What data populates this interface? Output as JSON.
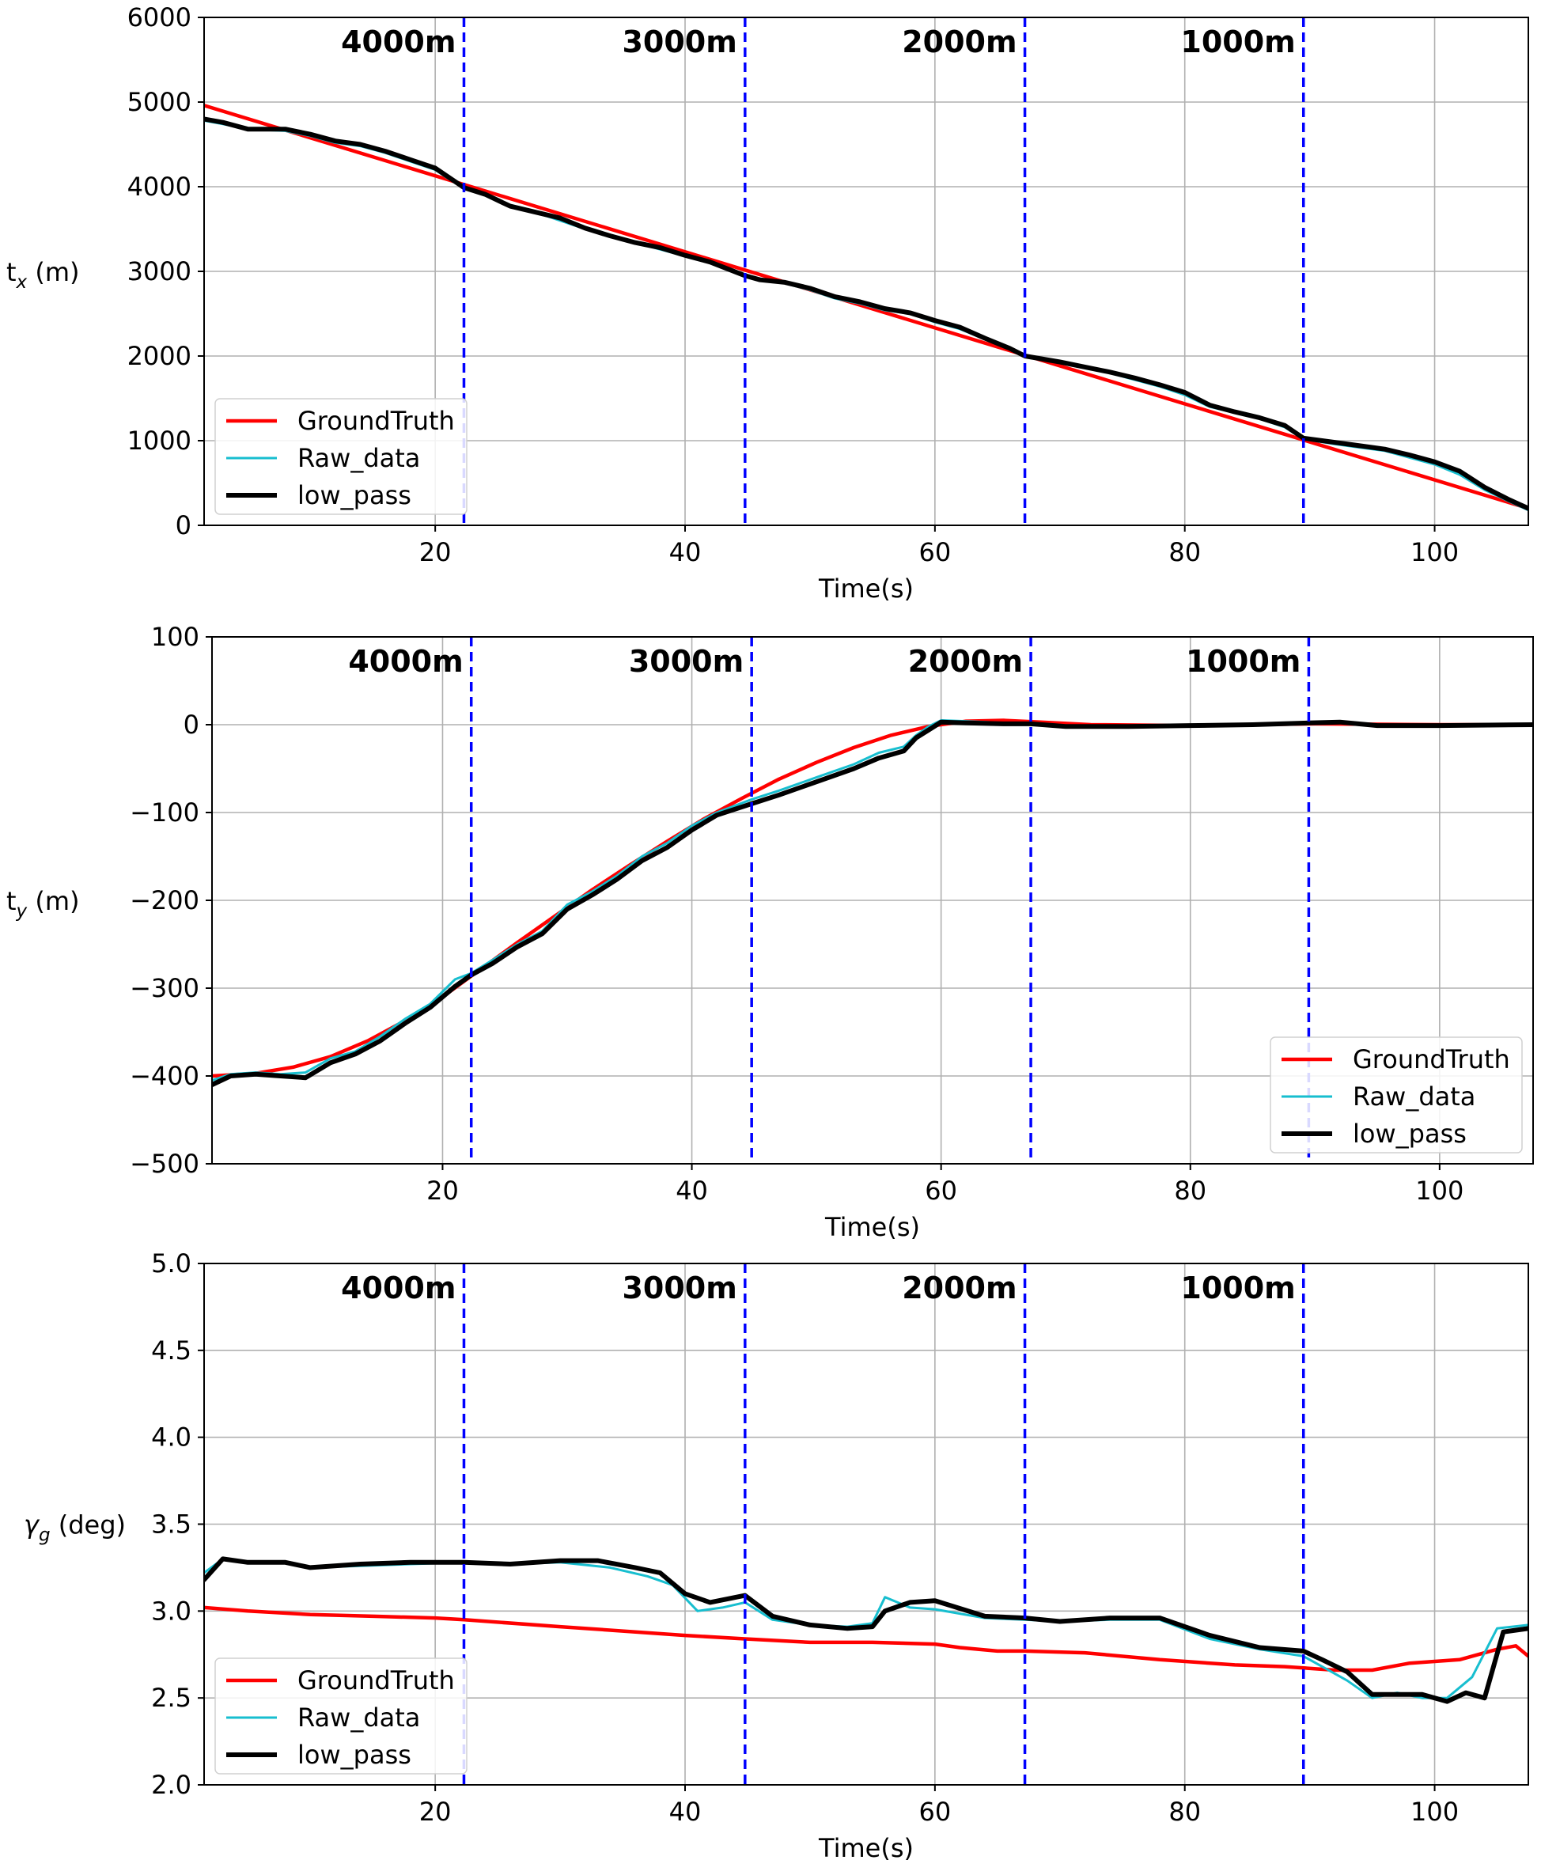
{
  "chart_data": [
    {
      "type": "line",
      "id": "tx",
      "xlabel": "Time(s)",
      "ylabel_main": "t",
      "ylabel_sub": "x",
      "ylabel_unit": " (m)",
      "xlim": [
        1.5,
        107.5
      ],
      "ylim": [
        0,
        6000
      ],
      "xticks": [
        20,
        40,
        60,
        80,
        100
      ],
      "xtick_labels": [
        "20",
        "40",
        "60",
        "80",
        "100"
      ],
      "yticks": [
        0,
        1000,
        2000,
        3000,
        4000,
        5000,
        6000
      ],
      "ytick_labels": [
        "0",
        "1000",
        "2000",
        "3000",
        "4000",
        "5000",
        "6000"
      ],
      "grid": true,
      "legend_position": "lower-left",
      "markers": [
        22.3,
        44.8,
        67.2,
        89.5
      ],
      "segment_labels": [
        {
          "x": 22.3,
          "text": "4000m"
        },
        {
          "x": 44.8,
          "text": "3000m"
        },
        {
          "x": 67.2,
          "text": "2000m"
        },
        {
          "x": 89.5,
          "text": "1000m"
        }
      ],
      "series": [
        {
          "name": "GroundTruth",
          "color": "#ff0000",
          "x": [
            1.5,
            107.5
          ],
          "y": [
            4960,
            200
          ]
        },
        {
          "name": "Raw_data",
          "color": "#17becf",
          "x": [
            1.5,
            3,
            5,
            8,
            10,
            12,
            14,
            16,
            18,
            20,
            21,
            22.3,
            24,
            26,
            28,
            30,
            32,
            34,
            36,
            38,
            40,
            42,
            44.8,
            46,
            48,
            50,
            52,
            54,
            56,
            58,
            60,
            62,
            64,
            66,
            67.2,
            70,
            72,
            74,
            76,
            78,
            80,
            82,
            84,
            86,
            88,
            89.5,
            92,
            94,
            96,
            98,
            100,
            102,
            104,
            106,
            107.5
          ],
          "y": [
            4780,
            4740,
            4680,
            4660,
            4600,
            4520,
            4480,
            4400,
            4300,
            4200,
            4100,
            4000,
            3900,
            3760,
            3700,
            3600,
            3500,
            3420,
            3340,
            3260,
            3180,
            3100,
            2960,
            2890,
            2860,
            2780,
            2680,
            2620,
            2540,
            2500,
            2400,
            2320,
            2200,
            2080,
            2000,
            1920,
            1860,
            1800,
            1720,
            1640,
            1540,
            1400,
            1330,
            1260,
            1160,
            1020,
            960,
            920,
            880,
            800,
            720,
            600,
            420,
            280,
            180
          ]
        },
        {
          "name": "low_pass",
          "color": "#000000",
          "x": [
            1.5,
            3,
            5,
            8,
            10,
            12,
            14,
            16,
            18,
            20,
            21,
            22.3,
            24,
            26,
            28,
            30,
            32,
            34,
            36,
            38,
            40,
            42,
            44.8,
            46,
            48,
            50,
            52,
            54,
            56,
            58,
            60,
            62,
            64,
            66,
            67.2,
            70,
            72,
            74,
            76,
            78,
            80,
            82,
            84,
            86,
            88,
            89.5,
            92,
            94,
            96,
            98,
            100,
            102,
            104,
            106,
            107.5
          ],
          "y": [
            4800,
            4760,
            4680,
            4680,
            4620,
            4540,
            4500,
            4420,
            4320,
            4220,
            4120,
            3990,
            3910,
            3770,
            3700,
            3630,
            3510,
            3420,
            3340,
            3280,
            3190,
            3110,
            2950,
            2900,
            2870,
            2800,
            2700,
            2640,
            2560,
            2510,
            2420,
            2340,
            2210,
            2090,
            2000,
            1930,
            1870,
            1810,
            1740,
            1660,
            1570,
            1420,
            1340,
            1270,
            1180,
            1030,
            980,
            940,
            900,
            830,
            750,
            640,
            450,
            300,
            200
          ]
        }
      ]
    },
    {
      "type": "line",
      "id": "ty",
      "xlabel": "Time(s)",
      "ylabel_main": "t",
      "ylabel_sub": "y",
      "ylabel_unit": " (m)",
      "xlim": [
        1.5,
        107.5
      ],
      "ylim": [
        -500,
        100
      ],
      "xticks": [
        20,
        40,
        60,
        80,
        100
      ],
      "xtick_labels": [
        "20",
        "40",
        "60",
        "80",
        "100"
      ],
      "yticks": [
        -500,
        -400,
        -300,
        -200,
        -100,
        0,
        100
      ],
      "ytick_labels": [
        "−500",
        "−400",
        "−300",
        "−200",
        "−100",
        "0",
        "100"
      ],
      "grid": true,
      "legend_position": "lower-right",
      "markers": [
        22.3,
        44.8,
        67.2,
        89.5
      ],
      "segment_labels": [
        {
          "x": 22.3,
          "text": "4000m"
        },
        {
          "x": 44.8,
          "text": "3000m"
        },
        {
          "x": 67.2,
          "text": "2000m"
        },
        {
          "x": 89.5,
          "text": "1000m"
        }
      ],
      "series": [
        {
          "name": "GroundTruth",
          "color": "#ff0000",
          "x": [
            1.5,
            5,
            8,
            11,
            14,
            17,
            20,
            23,
            26,
            29,
            32,
            35,
            38,
            41,
            44,
            47,
            50,
            53,
            56,
            59,
            62,
            65,
            68,
            72,
            80,
            90,
            100,
            107.5
          ],
          "y": [
            -400,
            -397,
            -390,
            -378,
            -360,
            -337,
            -310,
            -279,
            -248,
            -218,
            -188,
            -160,
            -133,
            -107,
            -84,
            -62,
            -43,
            -26,
            -12,
            -2,
            4,
            5,
            3,
            0,
            -1,
            1,
            0,
            0
          ]
        },
        {
          "name": "Raw_data",
          "color": "#17becf",
          "x": [
            1.5,
            3,
            5,
            7,
            9,
            11,
            13,
            15,
            17,
            19,
            21,
            22.3,
            24,
            26,
            28,
            30,
            32,
            34,
            36,
            38,
            40,
            42,
            44.8,
            47,
            50,
            53,
            55,
            57,
            58,
            59,
            60,
            62,
            65,
            67.2,
            70,
            75,
            80,
            85,
            89.5,
            92,
            95,
            100,
            107.5
          ],
          "y": [
            -405,
            -398,
            -396,
            -398,
            -396,
            -380,
            -372,
            -355,
            -335,
            -318,
            -290,
            -283,
            -268,
            -250,
            -235,
            -205,
            -190,
            -172,
            -150,
            -135,
            -115,
            -100,
            -85,
            -75,
            -60,
            -45,
            -32,
            -25,
            -12,
            -2,
            5,
            4,
            2,
            2,
            -1,
            -2,
            -1,
            0,
            2,
            3,
            0,
            -1,
            0
          ]
        },
        {
          "name": "low_pass",
          "color": "#000000",
          "x": [
            1.5,
            3,
            5,
            7,
            9,
            11,
            13,
            15,
            17,
            19,
            21,
            22.3,
            24,
            26,
            28,
            30,
            32,
            34,
            36,
            38,
            40,
            42,
            44.8,
            47,
            50,
            53,
            55,
            57,
            58,
            59,
            60,
            62,
            65,
            67.2,
            70,
            75,
            80,
            85,
            89.5,
            92,
            95,
            100,
            107.5
          ],
          "y": [
            -410,
            -400,
            -398,
            -400,
            -402,
            -385,
            -375,
            -360,
            -340,
            -322,
            -298,
            -285,
            -272,
            -253,
            -238,
            -210,
            -194,
            -176,
            -155,
            -140,
            -120,
            -103,
            -90,
            -80,
            -65,
            -50,
            -38,
            -30,
            -15,
            -6,
            3,
            2,
            1,
            1,
            -2,
            -2,
            -1,
            0,
            2,
            3,
            -1,
            -1,
            0
          ]
        }
      ]
    },
    {
      "type": "line",
      "id": "gamma",
      "xlabel": "Time(s)",
      "ylabel_main": "γ",
      "ylabel_sub": "g",
      "ylabel_unit": " (deg)",
      "xlim": [
        1.5,
        107.5
      ],
      "ylim": [
        2.0,
        5.0
      ],
      "xticks": [
        20,
        40,
        60,
        80,
        100
      ],
      "xtick_labels": [
        "20",
        "40",
        "60",
        "80",
        "100"
      ],
      "yticks": [
        2.0,
        2.5,
        3.0,
        3.5,
        4.0,
        4.5,
        5.0
      ],
      "ytick_labels": [
        "2.0",
        "2.5",
        "3.0",
        "3.5",
        "4.0",
        "4.5",
        "5.0"
      ],
      "grid": true,
      "legend_position": "lower-left",
      "markers": [
        22.3,
        44.8,
        67.2,
        89.5
      ],
      "segment_labels": [
        {
          "x": 22.3,
          "text": "4000m"
        },
        {
          "x": 44.8,
          "text": "3000m"
        },
        {
          "x": 67.2,
          "text": "2000m"
        },
        {
          "x": 89.5,
          "text": "1000m"
        }
      ],
      "series": [
        {
          "name": "GroundTruth",
          "color": "#ff0000",
          "x": [
            1.5,
            5,
            10,
            15,
            20,
            22.3,
            30,
            40,
            44.8,
            50,
            55,
            60,
            62,
            65,
            67.2,
            72,
            78,
            84,
            88,
            92,
            95,
            98,
            102,
            105,
            106.5,
            107.5
          ],
          "y": [
            3.02,
            3.0,
            2.98,
            2.97,
            2.96,
            2.95,
            2.91,
            2.86,
            2.84,
            2.82,
            2.82,
            2.81,
            2.79,
            2.77,
            2.77,
            2.76,
            2.72,
            2.69,
            2.68,
            2.66,
            2.66,
            2.7,
            2.72,
            2.78,
            2.8,
            2.74
          ]
        },
        {
          "name": "Raw_data",
          "color": "#17becf",
          "x": [
            1.5,
            3,
            5,
            8,
            10,
            14,
            18,
            22.3,
            26,
            30,
            34,
            37,
            39,
            41,
            43,
            44.8,
            47,
            50,
            53,
            55,
            56,
            58,
            60,
            64,
            67.2,
            70,
            74,
            78,
            82,
            86,
            89.5,
            91,
            93,
            95,
            97,
            99,
            101,
            103,
            105,
            107.5
          ],
          "y": [
            3.22,
            3.3,
            3.28,
            3.28,
            3.25,
            3.26,
            3.27,
            3.28,
            3.27,
            3.28,
            3.25,
            3.2,
            3.15,
            3.0,
            3.02,
            3.05,
            2.95,
            2.92,
            2.91,
            2.93,
            3.08,
            3.02,
            3.01,
            2.96,
            2.95,
            2.94,
            2.95,
            2.95,
            2.84,
            2.78,
            2.74,
            2.68,
            2.6,
            2.5,
            2.53,
            2.5,
            2.5,
            2.62,
            2.9,
            2.92
          ]
        },
        {
          "name": "low_pass",
          "color": "#000000",
          "x": [
            1.5,
            3,
            5,
            8,
            10,
            14,
            18,
            22.3,
            26,
            30,
            33,
            36,
            38,
            40,
            42,
            44.8,
            47,
            50,
            53,
            55,
            56,
            58,
            60,
            64,
            67.2,
            70,
            74,
            78,
            82,
            86,
            89.5,
            91,
            93,
            95,
            97,
            99,
            101,
            102.5,
            104,
            105.5,
            107.5
          ],
          "y": [
            3.18,
            3.3,
            3.28,
            3.28,
            3.25,
            3.27,
            3.28,
            3.28,
            3.27,
            3.29,
            3.29,
            3.25,
            3.22,
            3.1,
            3.05,
            3.09,
            2.97,
            2.92,
            2.9,
            2.91,
            3.0,
            3.05,
            3.06,
            2.97,
            2.96,
            2.94,
            2.96,
            2.96,
            2.86,
            2.79,
            2.77,
            2.72,
            2.65,
            2.52,
            2.52,
            2.52,
            2.48,
            2.53,
            2.5,
            2.88,
            2.9
          ]
        }
      ]
    }
  ]
}
